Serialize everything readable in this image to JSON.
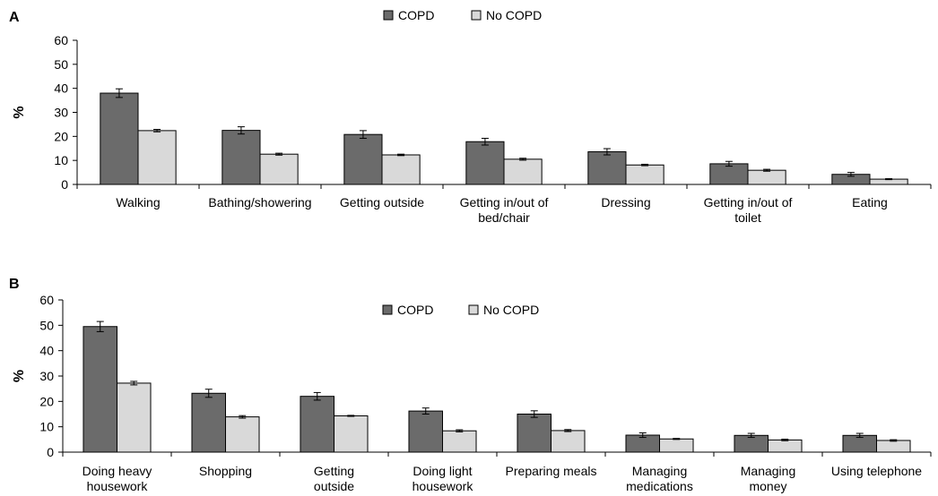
{
  "chart_data": [
    {
      "panel_label": "A",
      "type": "bar",
      "title": "",
      "xlabel": "",
      "ylabel": "%",
      "ylim": [
        0,
        60
      ],
      "yticks": [
        0,
        10,
        20,
        30,
        40,
        50,
        60
      ],
      "grid": false,
      "legend_position": "top-center",
      "categories": [
        [
          "Walking"
        ],
        [
          "Bathing/showering"
        ],
        [
          "Getting outside"
        ],
        [
          "Getting in/out of",
          "bed/chair"
        ],
        [
          "Dressing"
        ],
        [
          "Getting in/out of",
          "toilet"
        ],
        [
          "Eating"
        ]
      ],
      "series": [
        {
          "name": "COPD",
          "color": "#6b6b6b",
          "values": [
            38,
            22.5,
            20.8,
            17.8,
            13.6,
            8.6,
            4.2
          ],
          "error": [
            1.8,
            1.5,
            1.6,
            1.4,
            1.3,
            1.0,
            0.8
          ]
        },
        {
          "name": "No COPD",
          "color": "#d9d9d9",
          "values": [
            22.4,
            12.6,
            12.3,
            10.5,
            8.1,
            5.9,
            2.2
          ],
          "error": [
            0.5,
            0.4,
            0.3,
            0.4,
            0.3,
            0.4,
            0.2
          ]
        }
      ]
    },
    {
      "panel_label": "B",
      "type": "bar",
      "title": "",
      "xlabel": "",
      "ylabel": "%",
      "ylim": [
        0,
        60
      ],
      "yticks": [
        0,
        10,
        20,
        30,
        40,
        50,
        60
      ],
      "grid": false,
      "legend_position": "top-center",
      "categories": [
        [
          "Doing heavy",
          "housework"
        ],
        [
          "Shopping"
        ],
        [
          "Getting",
          "outside"
        ],
        [
          "Doing light",
          "housework"
        ],
        [
          "Preparing meals"
        ],
        [
          "Managing",
          "medications"
        ],
        [
          "Managing",
          "money"
        ],
        [
          "Using telephone"
        ]
      ],
      "series": [
        {
          "name": "COPD",
          "color": "#6b6b6b",
          "values": [
            49.5,
            23.2,
            22,
            16.2,
            15,
            6.7,
            6.6,
            6.6
          ],
          "error": [
            2.0,
            1.6,
            1.5,
            1.2,
            1.3,
            0.9,
            0.8,
            0.8
          ]
        },
        {
          "name": "No COPD",
          "color": "#d9d9d9",
          "values": [
            27.2,
            13.9,
            14.3,
            8.4,
            8.5,
            5.2,
            4.8,
            4.6
          ],
          "error": [
            0.7,
            0.5,
            0.2,
            0.4,
            0.4,
            0.2,
            0.3,
            0.3
          ]
        }
      ]
    }
  ]
}
